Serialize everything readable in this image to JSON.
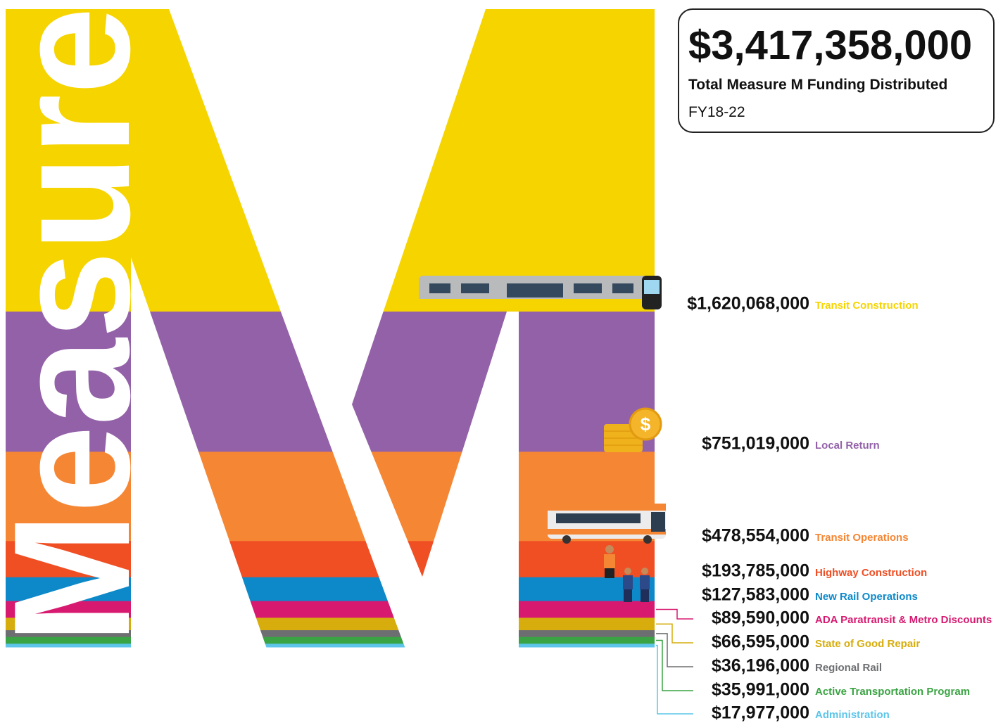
{
  "chart_data": {
    "type": "stacked-band",
    "title": "$3,417,358,000",
    "subtitle": "Total Measure M Funding Distributed",
    "note": "FY18-22",
    "watermark": "Measure",
    "categories": [
      "Transit Construction",
      "Local Return",
      "Transit Operations",
      "Highway Construction",
      "New Rail Operations",
      "ADA Paratransit & Metro Discounts",
      "State of Good Repair",
      "Regional Rail",
      "Active Transportation Program",
      "Administration"
    ],
    "values": [
      1620068000,
      751019000,
      478554000,
      193785000,
      127583000,
      89590000,
      66595000,
      36196000,
      35991000,
      17977000
    ],
    "value_labels": [
      "$1,620,068,000",
      "$751,019,000",
      "$478,554,000",
      "$193,785,000",
      "$127,583,000",
      "$89,590,000",
      "$66,595,000",
      "$36,196,000",
      "$35,991,000",
      "$17,977,000"
    ],
    "colors": [
      "#f6d400",
      "#9361a8",
      "#f58634",
      "#f04e23",
      "#0d89c9",
      "#d71a70",
      "#d6ad0c",
      "#6d6e71",
      "#3aa343",
      "#5cc5e9"
    ]
  }
}
